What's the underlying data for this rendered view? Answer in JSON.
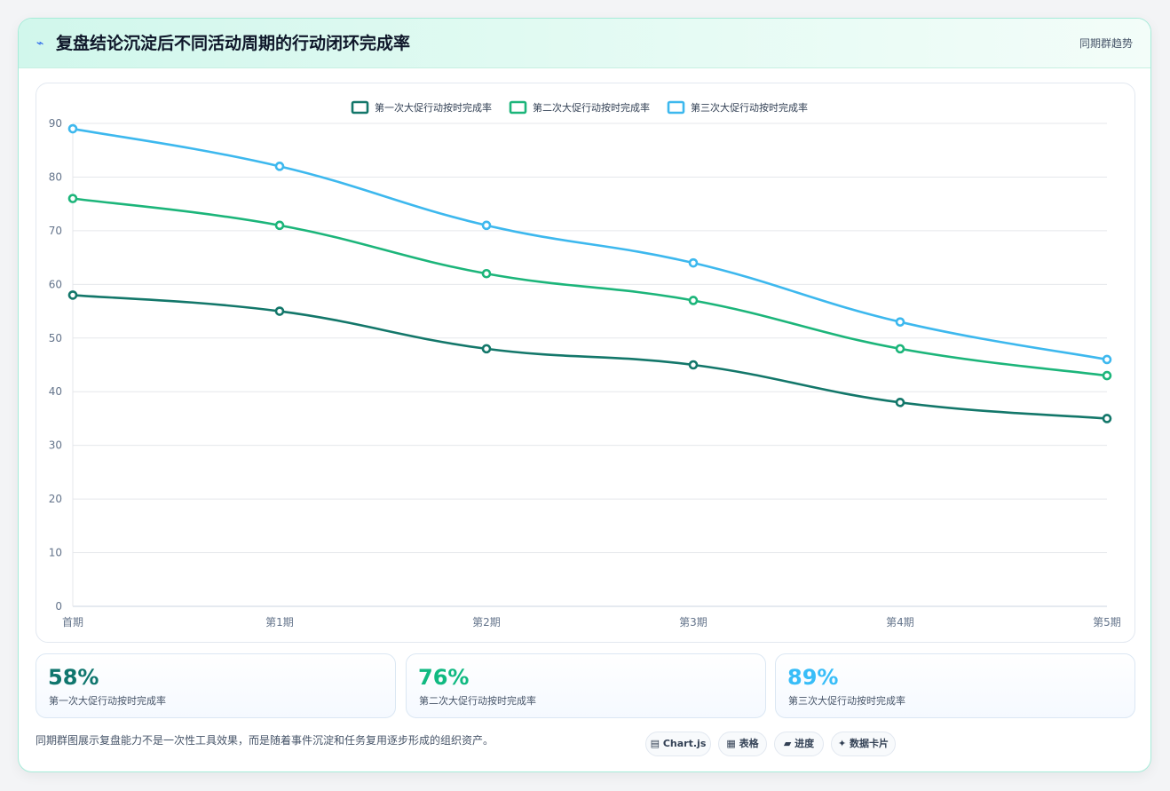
{
  "header": {
    "icon": "⌁",
    "title": "复盘结论沉淀后不同活动周期的行动闭环完成率",
    "tag": "同期群趋势"
  },
  "chart_data": {
    "type": "line",
    "categories": [
      "首期",
      "第1期",
      "第2期",
      "第3期",
      "第4期",
      "第5期"
    ],
    "series": [
      {
        "name": "第一次大促行动按时完成率",
        "color": "#13776a",
        "values": [
          58,
          55,
          48,
          45,
          38,
          35
        ]
      },
      {
        "name": "第二次大促行动按时完成率",
        "color": "#1cb57a",
        "values": [
          76,
          71,
          62,
          57,
          48,
          43
        ]
      },
      {
        "name": "第三次大促行动按时完成率",
        "color": "#3db8ee",
        "values": [
          89,
          82,
          71,
          64,
          53,
          46
        ]
      }
    ],
    "y_ticks": [
      0,
      10,
      20,
      30,
      40,
      50,
      60,
      70,
      80,
      90
    ],
    "ylim": [
      0,
      90
    ],
    "grid": true,
    "legend": "top-center"
  },
  "stats": [
    {
      "value": "58%",
      "label": "第一次大促行动按时完成率",
      "color": "#0f766e"
    },
    {
      "value": "76%",
      "label": "第二次大促行动按时完成率",
      "color": "#10b981"
    },
    {
      "value": "89%",
      "label": "第三次大促行动按时完成率",
      "color": "#38bdf8"
    }
  ],
  "footer_note": "同期群图展示复盘能力不是一次性工具效果，而是随着事件沉淀和任务复用逐步形成的组织资产。",
  "pills": [
    {
      "icon": "▤",
      "label": "Chart.js"
    },
    {
      "icon": "▦",
      "label": "表格"
    },
    {
      "icon": "▰",
      "label": "进度"
    },
    {
      "icon": "✦",
      "label": "数据卡片"
    }
  ]
}
